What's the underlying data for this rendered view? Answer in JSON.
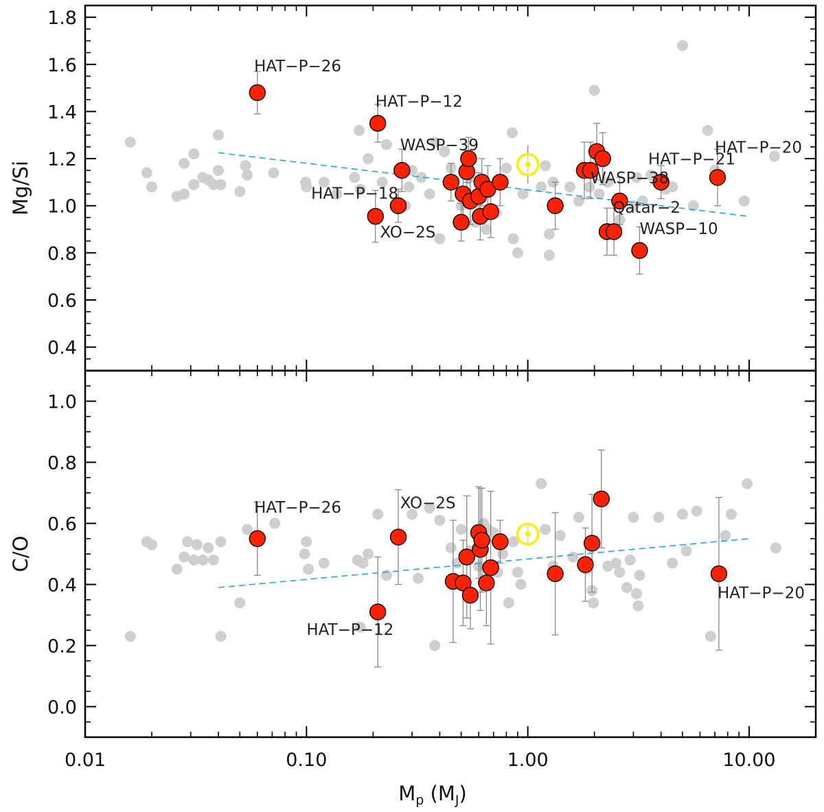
{
  "chart_data": [
    {
      "panel": "top",
      "type": "scatter",
      "ylabel": "Mg/Si",
      "xscale": "log",
      "xlim": [
        0.01,
        20
      ],
      "ylim": [
        0.3,
        1.85
      ],
      "yticks": [
        0.4,
        0.6,
        0.8,
        1.0,
        1.2,
        1.4,
        1.6,
        1.8
      ],
      "ytick_labels": [
        "0.4",
        "0.6",
        "0.8",
        "1.0",
        "1.2",
        "1.4",
        "1.6",
        "1.8"
      ],
      "colors": {
        "background_points": "#cfcfcf",
        "planets": "#ff2200",
        "sun": "#ffee00",
        "trend": "#1aa7ec",
        "errorbar": "#888888"
      },
      "background_points": [
        [
          0.016,
          1.27
        ],
        [
          0.019,
          1.14
        ],
        [
          0.02,
          1.08
        ],
        [
          0.026,
          1.04
        ],
        [
          0.028,
          1.18
        ],
        [
          0.028,
          1.05
        ],
        [
          0.031,
          1.22
        ],
        [
          0.031,
          1.09
        ],
        [
          0.034,
          1.12
        ],
        [
          0.036,
          1.11
        ],
        [
          0.038,
          1.09
        ],
        [
          0.04,
          1.3
        ],
        [
          0.04,
          1.15
        ],
        [
          0.041,
          1.09
        ],
        [
          0.05,
          1.06
        ],
        [
          0.053,
          1.17
        ],
        [
          0.054,
          1.13
        ],
        [
          0.071,
          1.14
        ],
        [
          0.099,
          1.1
        ],
        [
          0.1,
          1.08
        ],
        [
          0.12,
          1.1
        ],
        [
          0.137,
          1.05
        ],
        [
          0.165,
          1.12
        ],
        [
          0.173,
          1.32
        ],
        [
          0.175,
          1.07
        ],
        [
          0.19,
          1.2
        ],
        [
          0.22,
          1.1
        ],
        [
          0.23,
          1.26
        ],
        [
          0.25,
          1.0
        ],
        [
          0.28,
          1.0
        ],
        [
          0.29,
          1.08
        ],
        [
          0.3,
          1.15
        ],
        [
          0.33,
          1.12
        ],
        [
          0.36,
          1.05
        ],
        [
          0.38,
          1.27
        ],
        [
          0.4,
          0.86
        ],
        [
          0.42,
          1.23
        ],
        [
          0.45,
          1.16
        ],
        [
          0.5,
          1.0
        ],
        [
          0.52,
          0.92
        ],
        [
          0.55,
          1.12
        ],
        [
          0.58,
          0.93
        ],
        [
          0.62,
          1.11
        ],
        [
          0.65,
          0.9
        ],
        [
          0.72,
          0.97
        ],
        [
          0.8,
          1.16
        ],
        [
          0.85,
          1.31
        ],
        [
          0.86,
          0.86
        ],
        [
          0.9,
          0.8
        ],
        [
          0.95,
          1.05
        ],
        [
          1.15,
          1.08
        ],
        [
          1.2,
          1.17
        ],
        [
          1.25,
          0.79
        ],
        [
          1.25,
          0.88
        ],
        [
          1.3,
          1.1
        ],
        [
          1.55,
          1.08
        ],
        [
          1.7,
          1.02
        ],
        [
          1.9,
          1.08
        ],
        [
          2.0,
          1.49
        ],
        [
          2.1,
          1.05
        ],
        [
          2.3,
          1.1
        ],
        [
          2.6,
          0.94
        ],
        [
          3.0,
          1.0
        ],
        [
          3.1,
          1.12
        ],
        [
          3.3,
          1.02
        ],
        [
          3.6,
          1.13
        ],
        [
          4.2,
          1.07
        ],
        [
          4.5,
          1.08
        ],
        [
          5.0,
          1.68
        ],
        [
          5.6,
          1.0
        ],
        [
          6.5,
          1.32
        ],
        [
          7.0,
          1.15
        ],
        [
          9.5,
          1.02
        ],
        [
          13.0,
          1.21
        ]
      ],
      "planets": [
        {
          "x": 0.06,
          "y": 1.48,
          "err": 0.09
        },
        {
          "x": 0.205,
          "y": 0.955,
          "err": 0.11
        },
        {
          "x": 0.21,
          "y": 1.35,
          "err": 0.08
        },
        {
          "x": 0.26,
          "y": 1.0,
          "err": 0.07
        },
        {
          "x": 0.27,
          "y": 1.15,
          "err": 0.09
        },
        {
          "x": 0.45,
          "y": 1.1,
          "err": 0.08
        },
        {
          "x": 0.5,
          "y": 0.93,
          "err": 0.08
        },
        {
          "x": 0.51,
          "y": 1.05,
          "err": 0.1
        },
        {
          "x": 0.53,
          "y": 1.145,
          "err": 0.09
        },
        {
          "x": 0.54,
          "y": 1.2,
          "err": 0.09
        },
        {
          "x": 0.55,
          "y": 1.02,
          "err": 0.1
        },
        {
          "x": 0.6,
          "y": 1.04,
          "err": 0.1
        },
        {
          "x": 0.61,
          "y": 0.955,
          "err": 0.1
        },
        {
          "x": 0.62,
          "y": 1.1,
          "err": 0.1
        },
        {
          "x": 0.66,
          "y": 1.07,
          "err": 0.1
        },
        {
          "x": 0.68,
          "y": 0.975,
          "err": 0.11
        },
        {
          "x": 0.75,
          "y": 1.1,
          "err": 0.1
        },
        {
          "x": 1.33,
          "y": 1.0,
          "err": 0.1
        },
        {
          "x": 1.8,
          "y": 1.15,
          "err": 0.12
        },
        {
          "x": 1.92,
          "y": 1.15,
          "err": 0.12
        },
        {
          "x": 2.05,
          "y": 1.23,
          "err": 0.12
        },
        {
          "x": 2.18,
          "y": 1.2,
          "err": 0.11
        },
        {
          "x": 2.28,
          "y": 0.89,
          "err": 0.1
        },
        {
          "x": 2.45,
          "y": 0.89,
          "err": 0.1
        },
        {
          "x": 2.6,
          "y": 1.02,
          "err": 0.1
        },
        {
          "x": 3.2,
          "y": 0.81,
          "err": 0.1
        },
        {
          "x": 4.0,
          "y": 1.1,
          "err": 0.07
        },
        {
          "x": 7.2,
          "y": 1.12,
          "err": 0.12
        }
      ],
      "sun": {
        "x": 1.0,
        "y": 1.175,
        "err": 0.08
      },
      "trend": {
        "x": [
          0.04,
          10
        ],
        "y": [
          1.225,
          0.955
        ]
      },
      "annotations": [
        {
          "text": "HAT−P−26",
          "x": 0.058,
          "y": 1.57
        },
        {
          "text": "HAT−P−12",
          "x": 0.205,
          "y": 1.42
        },
        {
          "text": "WASP−39",
          "x": 0.265,
          "y": 1.235
        },
        {
          "text": "HAT−P−18",
          "x": 0.105,
          "y": 1.03
        },
        {
          "text": "XO−2S",
          "x": 0.215,
          "y": 0.865
        },
        {
          "text": "WASP−38",
          "x": 1.92,
          "y": 1.095
        },
        {
          "text": "HAT−P−21",
          "x": 3.5,
          "y": 1.175
        },
        {
          "text": "HAT−P−20",
          "x": 7.0,
          "y": 1.225
        },
        {
          "text": "Qatar−2",
          "x": 2.42,
          "y": 0.97
        },
        {
          "text": "WASP−10",
          "x": 3.2,
          "y": 0.88
        }
      ]
    },
    {
      "panel": "bottom",
      "type": "scatter",
      "ylabel": "C/O",
      "xlabel_main": "M",
      "xlabel_sub": "p",
      "xlabel_unit_main": "M",
      "xlabel_unit_sub": "J",
      "xscale": "log",
      "xlim": [
        0.01,
        20
      ],
      "ylim": [
        -0.1,
        1.1
      ],
      "yticks": [
        0.0,
        0.2,
        0.4,
        0.6,
        0.8,
        1.0
      ],
      "ytick_labels": [
        "0.0",
        "0.2",
        "0.4",
        "0.6",
        "0.8",
        "1.0"
      ],
      "xticks": [
        0.01,
        0.1,
        1.0,
        10.0
      ],
      "xtick_labels": [
        "0.01",
        "0.10",
        "1.00",
        "10.00"
      ],
      "background_points": [
        [
          0.016,
          0.23
        ],
        [
          0.019,
          0.54
        ],
        [
          0.02,
          0.53
        ],
        [
          0.026,
          0.45
        ],
        [
          0.028,
          0.49
        ],
        [
          0.029,
          0.54
        ],
        [
          0.031,
          0.48
        ],
        [
          0.032,
          0.53
        ],
        [
          0.034,
          0.48
        ],
        [
          0.036,
          0.52
        ],
        [
          0.038,
          0.48
        ],
        [
          0.041,
          0.54
        ],
        [
          0.041,
          0.23
        ],
        [
          0.05,
          0.34
        ],
        [
          0.054,
          0.58
        ],
        [
          0.072,
          0.6
        ],
        [
          0.098,
          0.5
        ],
        [
          0.1,
          0.54
        ],
        [
          0.102,
          0.45
        ],
        [
          0.12,
          0.47
        ],
        [
          0.17,
          0.48
        ],
        [
          0.175,
          0.26
        ],
        [
          0.18,
          0.47
        ],
        [
          0.19,
          0.5
        ],
        [
          0.21,
          0.63
        ],
        [
          0.23,
          0.43
        ],
        [
          0.3,
          0.63
        ],
        [
          0.32,
          0.42
        ],
        [
          0.36,
          0.65
        ],
        [
          0.38,
          0.2
        ],
        [
          0.4,
          0.61
        ],
        [
          0.45,
          0.52
        ],
        [
          0.48,
          0.47
        ],
        [
          0.5,
          0.58
        ],
        [
          0.55,
          0.51
        ],
        [
          0.6,
          0.46
        ],
        [
          0.63,
          0.6
        ],
        [
          0.66,
          0.58
        ],
        [
          0.7,
          0.57
        ],
        [
          0.73,
          0.44
        ],
        [
          0.77,
          0.5
        ],
        [
          0.82,
          0.34
        ],
        [
          0.86,
          0.54
        ],
        [
          0.9,
          0.44
        ],
        [
          0.93,
          0.4
        ],
        [
          1.15,
          0.73
        ],
        [
          1.2,
          0.58
        ],
        [
          1.3,
          0.46
        ],
        [
          1.4,
          0.56
        ],
        [
          1.6,
          0.49
        ],
        [
          1.7,
          0.62
        ],
        [
          1.85,
          0.45
        ],
        [
          1.95,
          0.38
        ],
        [
          1.98,
          0.34
        ],
        [
          2.3,
          0.46
        ],
        [
          2.5,
          0.47
        ],
        [
          2.6,
          0.44
        ],
        [
          2.8,
          0.39
        ],
        [
          2.9,
          0.48
        ],
        [
          3.0,
          0.62
        ],
        [
          3.1,
          0.37
        ],
        [
          3.15,
          0.33
        ],
        [
          3.2,
          0.43
        ],
        [
          3.9,
          0.62
        ],
        [
          4.5,
          0.47
        ],
        [
          5.0,
          0.63
        ],
        [
          5.2,
          0.51
        ],
        [
          5.8,
          0.64
        ],
        [
          6.7,
          0.23
        ],
        [
          7.8,
          0.56
        ],
        [
          8.3,
          0.63
        ],
        [
          9.8,
          0.73
        ],
        [
          13.2,
          0.52
        ]
      ],
      "planets": [
        {
          "x": 0.06,
          "y": 0.55,
          "err": 0.12
        },
        {
          "x": 0.21,
          "y": 0.31,
          "err": 0.18
        },
        {
          "x": 0.26,
          "y": 0.555,
          "err": 0.155
        },
        {
          "x": 0.46,
          "y": 0.41,
          "err": 0.2
        },
        {
          "x": 0.51,
          "y": 0.405,
          "err": 0.14
        },
        {
          "x": 0.53,
          "y": 0.49,
          "err": 0.2
        },
        {
          "x": 0.55,
          "y": 0.365,
          "err": 0.11
        },
        {
          "x": 0.6,
          "y": 0.57,
          "err": 0.15
        },
        {
          "x": 0.61,
          "y": 0.515,
          "err": 0.2
        },
        {
          "x": 0.62,
          "y": 0.545,
          "err": 0.17
        },
        {
          "x": 0.65,
          "y": 0.405,
          "err": 0.14
        },
        {
          "x": 0.68,
          "y": 0.455,
          "err": 0.25
        },
        {
          "x": 0.75,
          "y": 0.54,
          "err": 0.07
        },
        {
          "x": 1.33,
          "y": 0.435,
          "err": 0.2
        },
        {
          "x": 1.82,
          "y": 0.465,
          "err": 0.12
        },
        {
          "x": 1.95,
          "y": 0.535,
          "err": 0.16
        },
        {
          "x": 2.15,
          "y": 0.68,
          "err": 0.16
        },
        {
          "x": 7.3,
          "y": 0.435,
          "err": 0.25
        }
      ],
      "sun": {
        "x": 1.0,
        "y": 0.565,
        "err": 0.03
      },
      "trend": {
        "x": [
          0.04,
          10
        ],
        "y": [
          0.39,
          0.55
        ]
      },
      "annotations": [
        {
          "text": "HAT−P−26",
          "x": 0.058,
          "y": 0.635
        },
        {
          "text": "XO−2S",
          "x": 0.265,
          "y": 0.65
        },
        {
          "text": "HAT−P−12",
          "x": 0.1,
          "y": 0.235
        },
        {
          "text": "HAT−P−20",
          "x": 7.2,
          "y": 0.355
        }
      ]
    }
  ]
}
